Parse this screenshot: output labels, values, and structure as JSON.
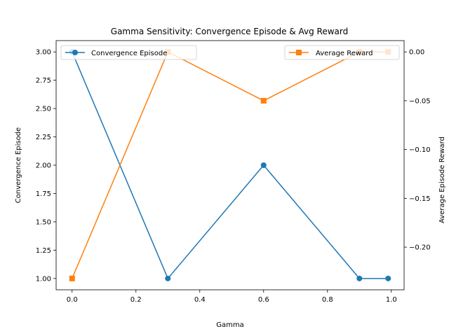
{
  "chart_data": {
    "type": "line",
    "title": "Gamma Sensitivity: Convergence Episode & Avg Reward",
    "xlabel": "Gamma",
    "ylabel_left": "Convergence Episode",
    "ylabel_right": "Average Episode Reward",
    "x": [
      0.0,
      0.3,
      0.6,
      0.9,
      0.99
    ],
    "xlim": [
      -0.05,
      1.04
    ],
    "xticks": [
      "0.0",
      "0.2",
      "0.4",
      "0.6",
      "0.8",
      "1.0"
    ],
    "ylim_left": [
      0.9,
      3.1
    ],
    "yticks_left": [
      "1.00",
      "1.25",
      "1.50",
      "1.75",
      "2.00",
      "2.25",
      "2.50",
      "2.75",
      "3.00"
    ],
    "ylim_right": [
      -0.2437,
      0.0116
    ],
    "yticks_right": [
      "0.00",
      "−0.05",
      "−0.10",
      "−0.15",
      "−0.20"
    ],
    "grid": false,
    "series": [
      {
        "name": "Convergence Episode",
        "axis": "left",
        "color": "#1f77b4",
        "marker": "circle",
        "values": [
          3,
          1,
          2,
          1,
          1
        ],
        "legend_position": "upper-left"
      },
      {
        "name": "Average Reward",
        "axis": "right",
        "color": "#ff7f0e",
        "marker": "square",
        "values": [
          -0.2321,
          0.0,
          -0.05,
          0.0,
          0.0
        ],
        "legend_position": "upper-right"
      }
    ]
  }
}
